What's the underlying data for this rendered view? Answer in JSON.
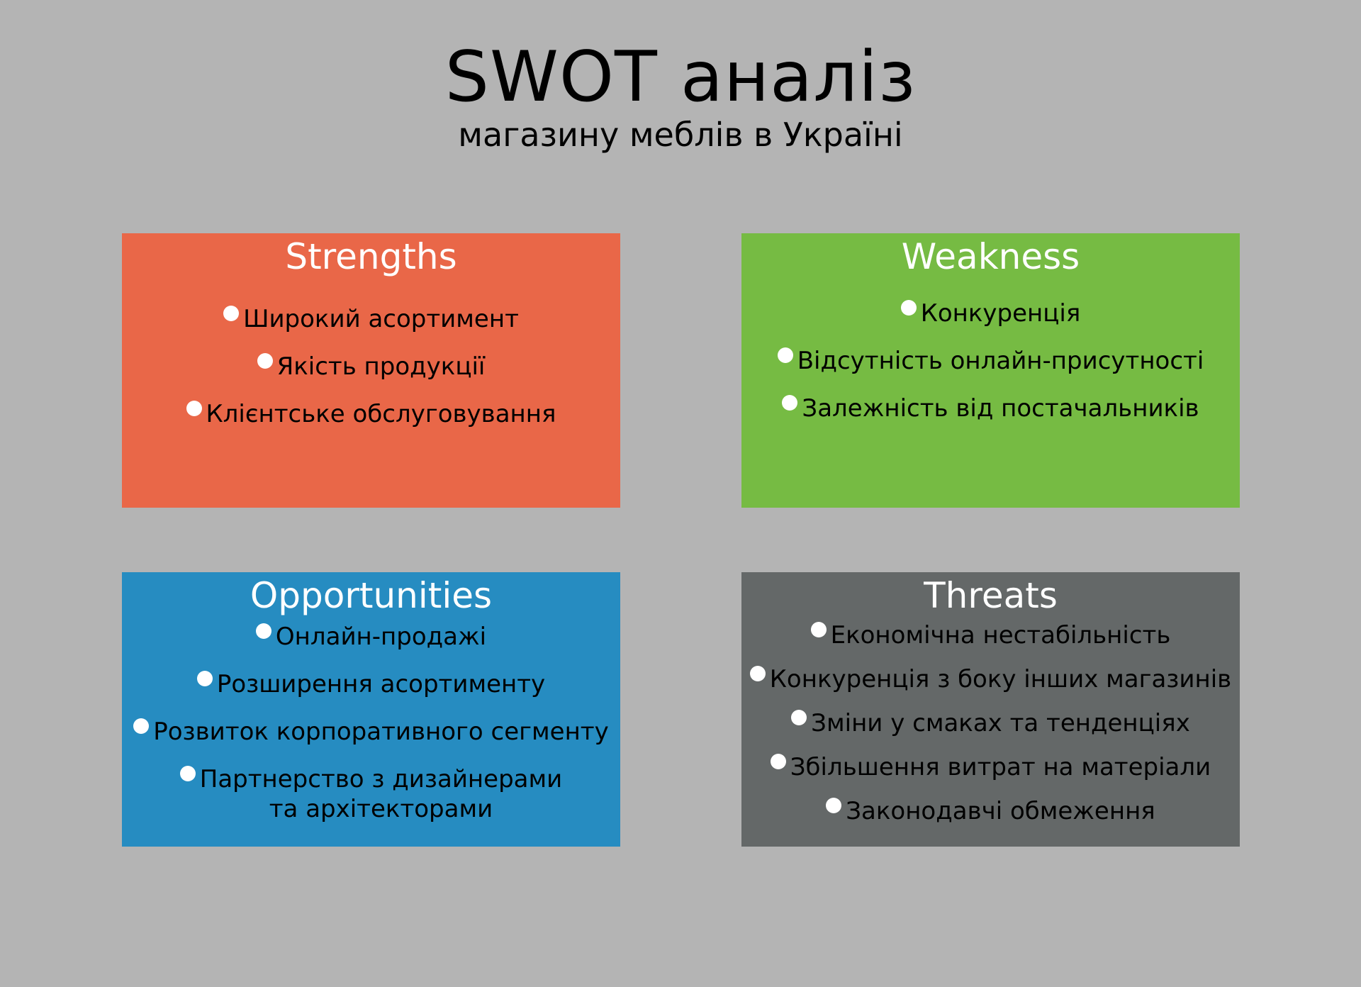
{
  "header": {
    "title": "SWOT аналіз",
    "subtitle": "магазину меблів в Україні"
  },
  "quadrants": {
    "strengths": {
      "heading": "Strengths",
      "color": "#e96748",
      "items": [
        "Широкий асортимент",
        "Якість продукції",
        "Клієнтське обслуговування"
      ]
    },
    "weakness": {
      "heading": "Weakness",
      "color": "#76bb43",
      "items": [
        "Конкуренція",
        "Відсутність онлайн-присутності",
        "Залежність від постачальників"
      ]
    },
    "opportunities": {
      "heading": "Opportunities",
      "color": "#268cc1",
      "items": [
        "Онлайн-продажі",
        "Розширення асортименту",
        "Розвиток корпоративного сегменту",
        "Партнерство з дизайнерами\nта архітекторами"
      ]
    },
    "threats": {
      "heading": "Threats",
      "color": "#646868",
      "items": [
        "Економічна нестабільність",
        "Конкуренція з боку інших магазинів",
        "Зміни у смаках та тенденціях",
        "Збільшення витрат на матеріали",
        "Законодавчі обмеження"
      ]
    }
  },
  "colors": {
    "background": "#b4b4b4",
    "heading_text": "#ffffff",
    "bullet": "#ffffff"
  }
}
